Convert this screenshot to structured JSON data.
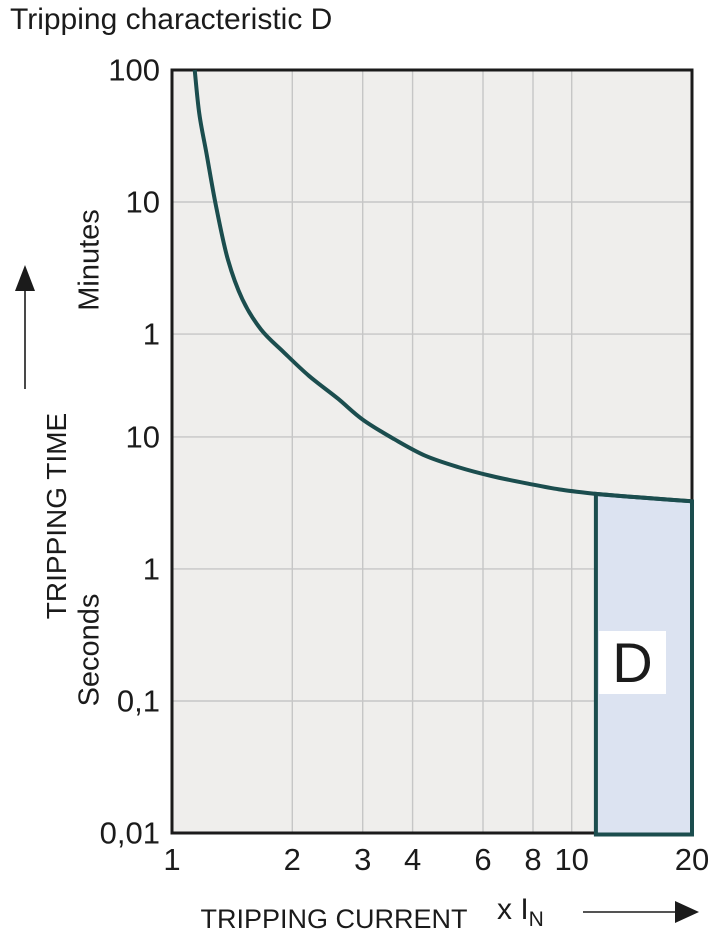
{
  "title": "Tripping characteristic D",
  "colors": {
    "text": "#1b1b1b",
    "border": "#1b1b1b",
    "plot_bg": "#efeeec",
    "grid": "#c6c6c6",
    "curve": "#1b4d4e",
    "region_fill": "#dce3f1",
    "region_stroke": "#1b4d4e",
    "label_box_bg": "#ffffff"
  },
  "chart_data": {
    "type": "line",
    "title": "Tripping characteristic D",
    "x_axis": {
      "label": "TRIPPING CURRENT",
      "unit_prefix": "x I",
      "unit_sub": "N",
      "scale": "log",
      "range": [
        1,
        20
      ],
      "ticks": [
        {
          "v": 1,
          "label": "1"
        },
        {
          "v": 2,
          "label": "2"
        },
        {
          "v": 3,
          "label": "3"
        },
        {
          "v": 4,
          "label": "4"
        },
        {
          "v": 6,
          "label": "6"
        },
        {
          "v": 8,
          "label": "8"
        },
        {
          "v": 10,
          "label": "10"
        },
        {
          "v": 20,
          "label": "20"
        }
      ],
      "gridline_values": [
        2,
        3,
        4,
        6,
        8,
        10
      ]
    },
    "y_axis": {
      "label": "TRIPPING TIME",
      "unit_upper": "Minutes",
      "unit_lower": "Seconds",
      "scale": "log",
      "range_seconds": [
        0.01,
        6000
      ],
      "ticks": [
        {
          "v": 6000,
          "label": "100"
        },
        {
          "v": 600,
          "label": "10"
        },
        {
          "v": 60,
          "label": "1"
        },
        {
          "v": 10,
          "label": "10"
        },
        {
          "v": 1,
          "label": "1"
        },
        {
          "v": 0.1,
          "label": "0,1"
        },
        {
          "v": 0.01,
          "label": "0,01"
        }
      ],
      "gridline_values": [
        600,
        60,
        10,
        1,
        0.1
      ]
    },
    "series": [
      {
        "name": "thermal-tripping-curve",
        "points_x_multiple_vs_seconds": [
          [
            1.14,
            6000
          ],
          [
            1.17,
            2800
          ],
          [
            1.22,
            1400
          ],
          [
            1.29,
            550
          ],
          [
            1.38,
            220
          ],
          [
            1.5,
            110
          ],
          [
            1.67,
            65
          ],
          [
            1.9,
            44
          ],
          [
            2.2,
            29
          ],
          [
            2.6,
            19.5
          ],
          [
            3.0,
            13.5
          ],
          [
            3.6,
            9.6
          ],
          [
            4.3,
            7.2
          ],
          [
            5.2,
            5.9
          ],
          [
            6.3,
            5.05
          ],
          [
            7.7,
            4.45
          ],
          [
            9.3,
            4.0
          ],
          [
            11.5,
            3.7
          ],
          [
            14,
            3.52
          ],
          [
            17,
            3.37
          ],
          [
            20,
            3.25
          ]
        ]
      }
    ],
    "region": {
      "label": "D",
      "x_from": 10,
      "x_to": 20,
      "y_bottom_seconds": 0.01
    }
  }
}
